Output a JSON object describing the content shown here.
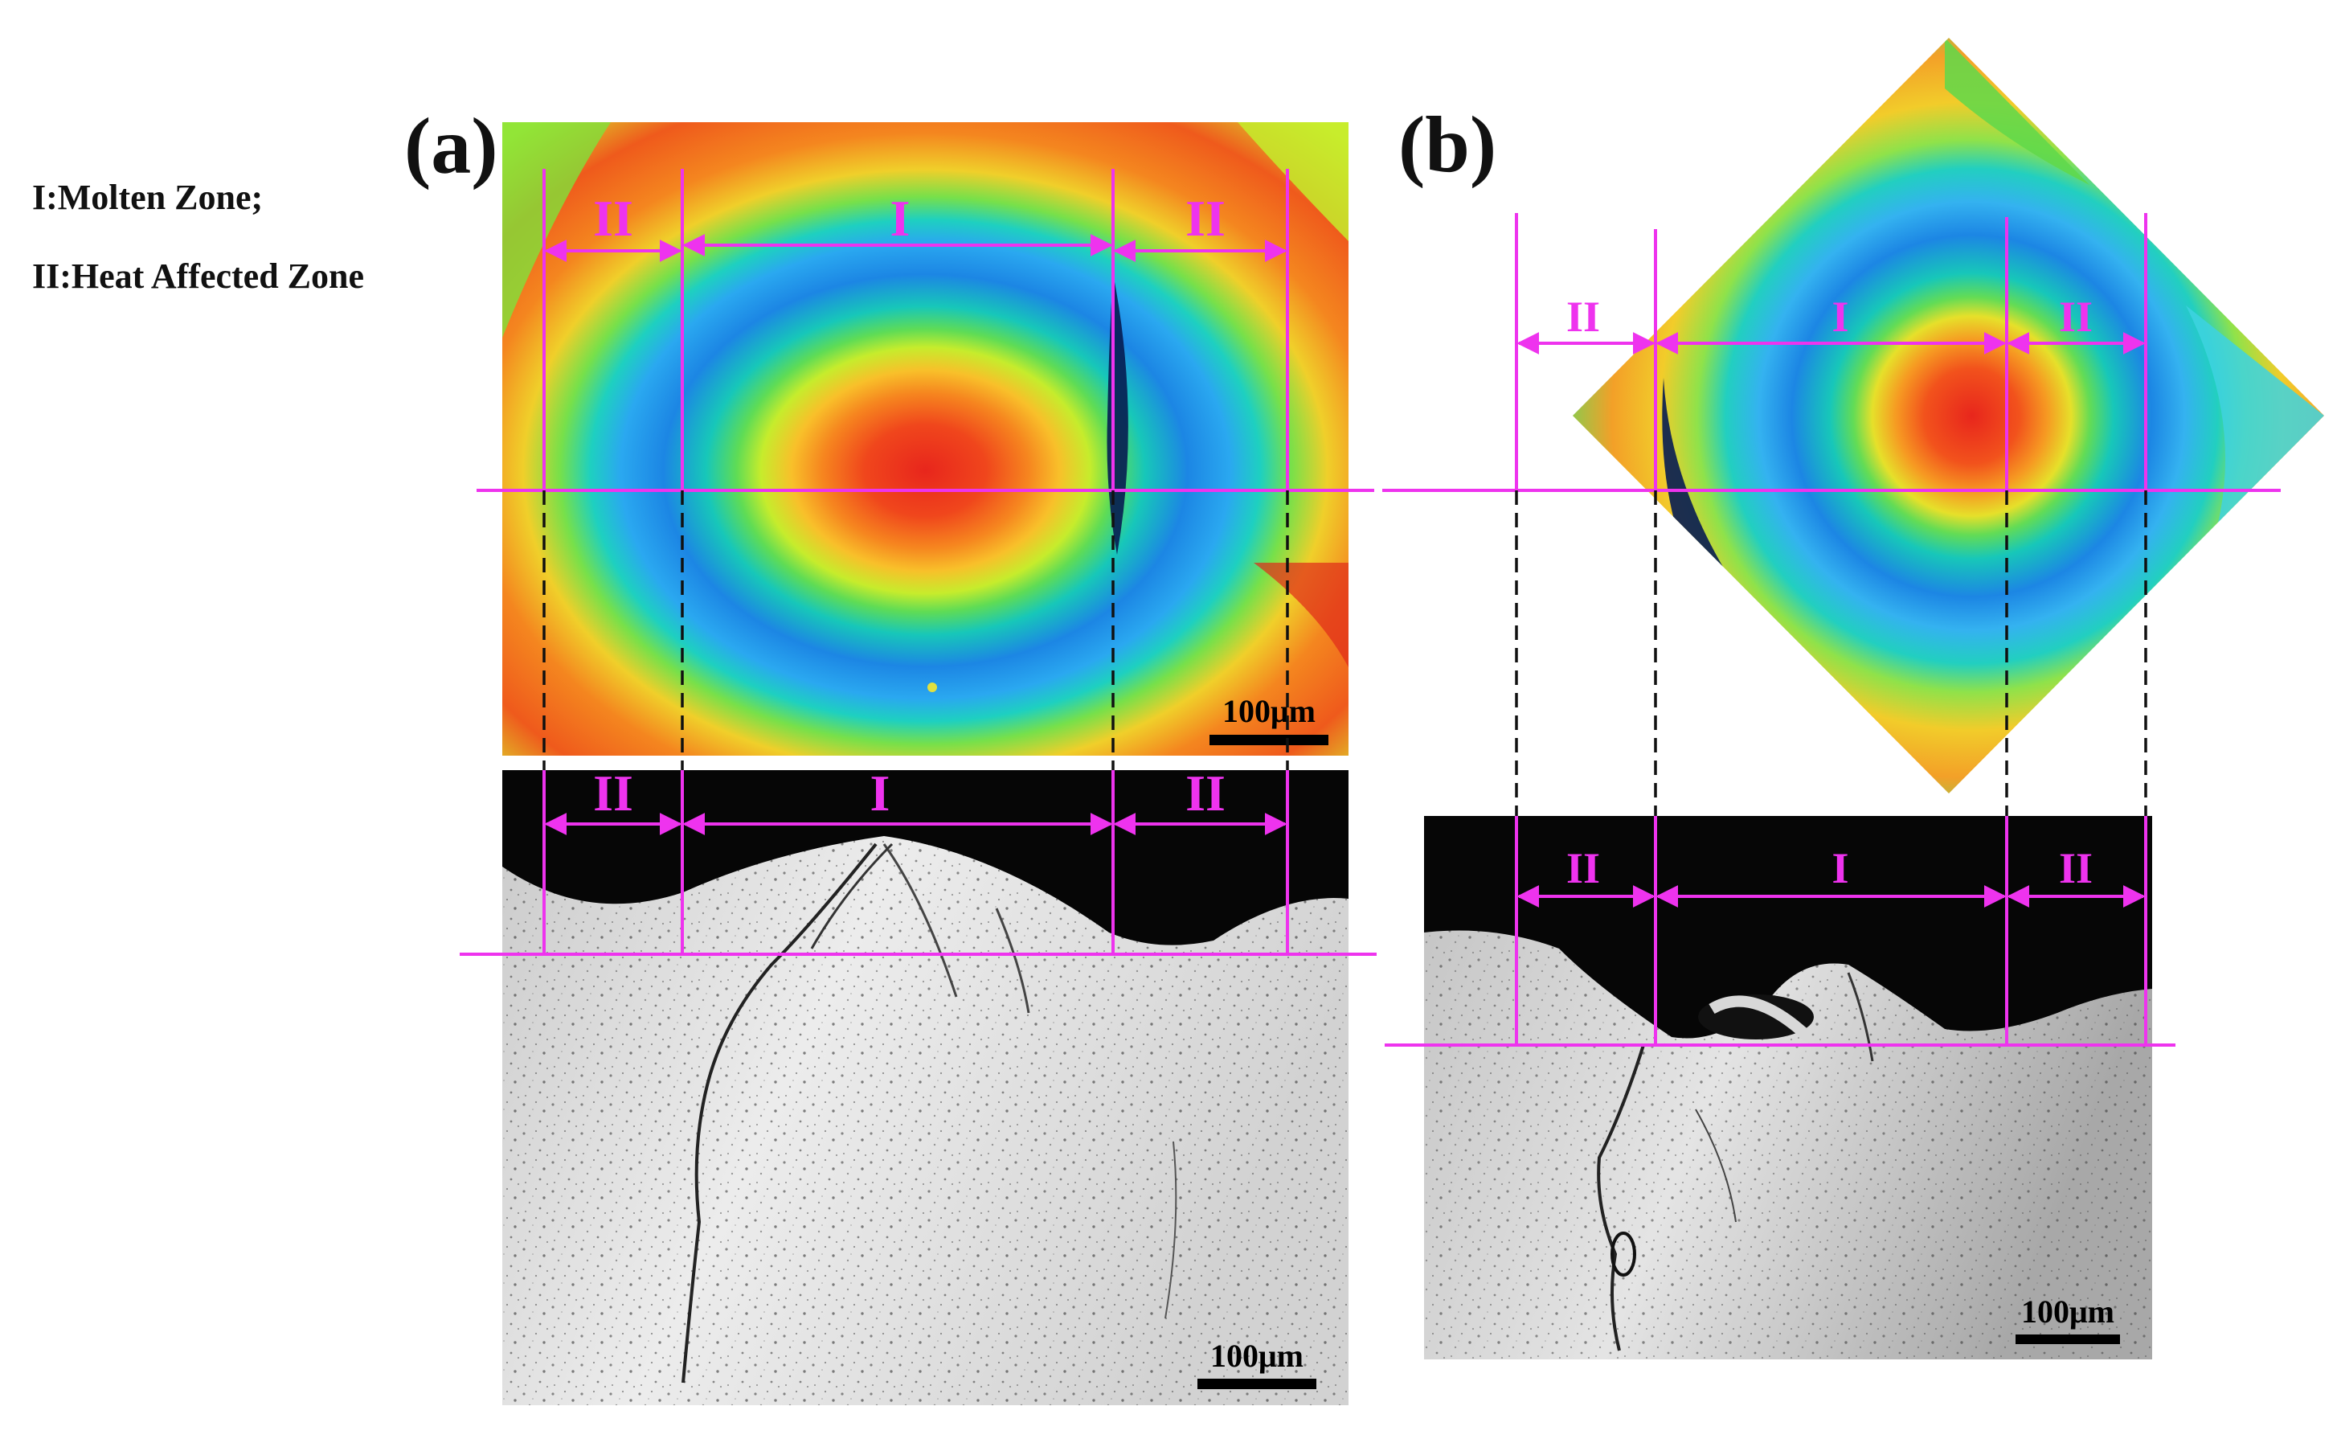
{
  "legend": {
    "zone_i": "I:Molten Zone;",
    "zone_ii": "II:Heat Affected Zone"
  },
  "panel_a": {
    "label": "(a)"
  },
  "panel_b": {
    "label": "(b)"
  },
  "zone_labels": {
    "molten": "I",
    "haz": "II"
  },
  "scale_bar": "100μm",
  "colors": {
    "annotation": "#ee33ee",
    "heatmap_stops": [
      "#e8281e",
      "#f4701c",
      "#f8b62a",
      "#d6ef2a",
      "#6fe04f",
      "#17c8b8",
      "#1d8ee6",
      "#0a2a66"
    ]
  }
}
